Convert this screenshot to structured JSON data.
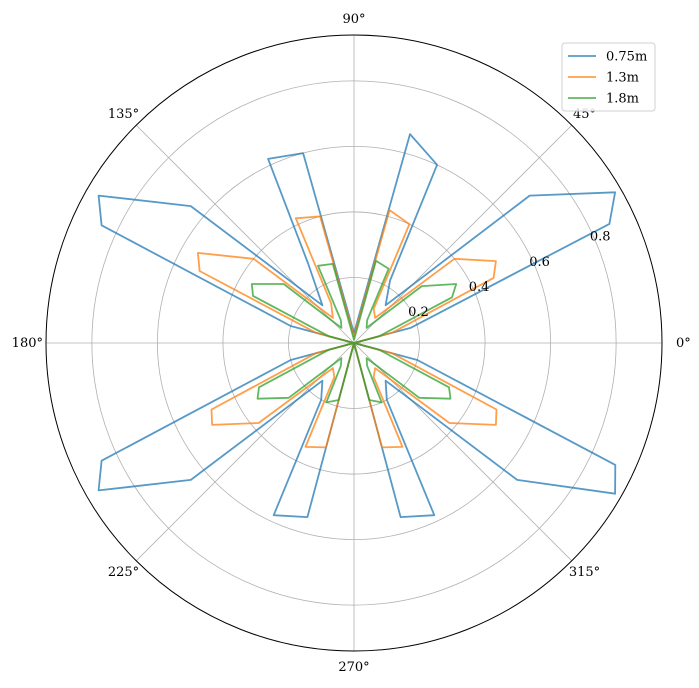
{
  "chart_data": {
    "type": "line",
    "projection": "polar",
    "title": "",
    "theta_unit": "degrees",
    "theta_ticks": [
      0,
      45,
      90,
      135,
      180,
      225,
      270,
      315
    ],
    "theta_tick_labels": [
      "0°",
      "45°",
      "90°",
      "135°",
      "180°",
      "225°",
      "270°",
      "315°"
    ],
    "r_ticks": [
      0.2,
      0.4,
      0.6,
      0.8
    ],
    "r_tick_labels": [
      "0.2",
      "0.4",
      "0.6",
      "0.8"
    ],
    "r_max": 0.94,
    "r_label_angle_deg": 22.5,
    "grid": true,
    "legend": {
      "location": "top-right"
    },
    "theta": [
      0,
      15,
      25,
      30,
      40,
      50,
      60,
      65,
      75,
      90,
      105,
      115,
      120,
      130,
      140,
      150,
      155,
      165,
      180,
      195,
      205,
      210,
      220,
      230,
      240,
      245,
      255,
      270,
      285,
      295,
      300,
      310,
      320,
      330,
      335,
      345,
      360
    ],
    "series": [
      {
        "name": "0.75m",
        "color": "#1f77b4",
        "values": [
          0.0,
          0.18,
          0.86,
          0.92,
          0.7,
          0.15,
          0.22,
          0.6,
          0.66,
          0.03,
          0.6,
          0.62,
          0.28,
          0.15,
          0.65,
          0.9,
          0.85,
          0.2,
          0.0,
          0.2,
          0.85,
          0.9,
          0.65,
          0.15,
          0.2,
          0.58,
          0.55,
          0.0,
          0.55,
          0.58,
          0.2,
          0.15,
          0.65,
          0.92,
          0.88,
          0.2,
          0.0
        ]
      },
      {
        "name": "1.3m",
        "color": "#ff7f0e",
        "values": [
          0.0,
          0.12,
          0.47,
          0.5,
          0.4,
          0.1,
          0.12,
          0.4,
          0.42,
          0.02,
          0.4,
          0.42,
          0.14,
          0.1,
          0.4,
          0.55,
          0.52,
          0.12,
          0.0,
          0.12,
          0.48,
          0.5,
          0.38,
          0.1,
          0.12,
          0.35,
          0.33,
          0.0,
          0.33,
          0.35,
          0.12,
          0.1,
          0.38,
          0.5,
          0.48,
          0.12,
          0.0
        ]
      },
      {
        "name": "1.8m",
        "color": "#2ca02c",
        "values": [
          0.0,
          0.08,
          0.33,
          0.36,
          0.27,
          0.06,
          0.08,
          0.25,
          0.26,
          0.01,
          0.25,
          0.26,
          0.08,
          0.06,
          0.28,
          0.36,
          0.34,
          0.08,
          0.0,
          0.08,
          0.32,
          0.34,
          0.26,
          0.06,
          0.08,
          0.2,
          0.18,
          0.0,
          0.18,
          0.2,
          0.08,
          0.06,
          0.26,
          0.34,
          0.32,
          0.08,
          0.0
        ]
      }
    ]
  }
}
